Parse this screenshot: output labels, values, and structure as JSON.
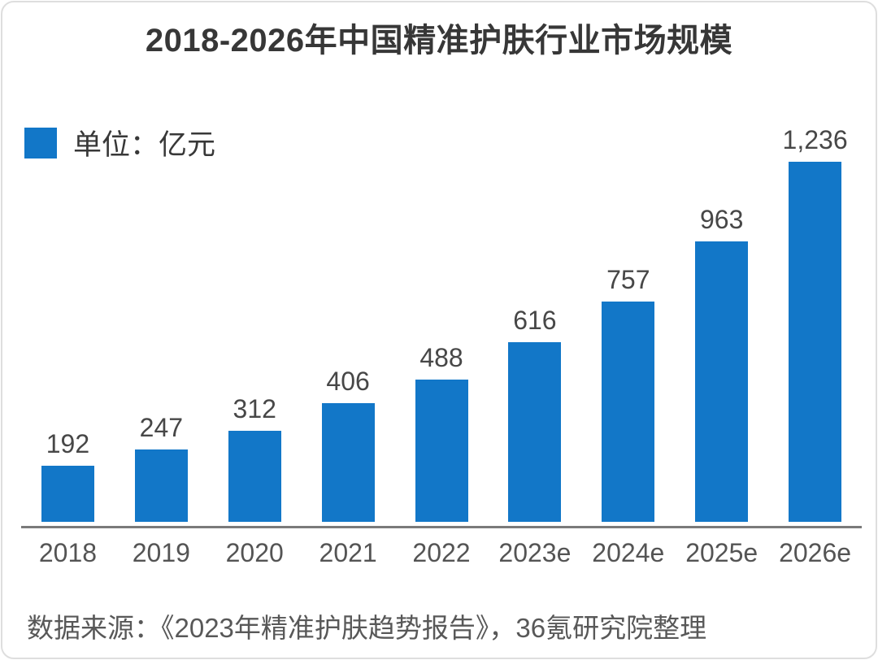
{
  "chart_data": {
    "type": "bar",
    "title": "2018-2026年中国精准护肤行业市场规模",
    "legend_label": "单位：亿元",
    "categories": [
      "2018",
      "2019",
      "2020",
      "2021",
      "2022",
      "2023e",
      "2024e",
      "2025e",
      "2026e"
    ],
    "values": [
      192,
      247,
      312,
      406,
      488,
      616,
      757,
      963,
      1236
    ],
    "value_labels": [
      "192",
      "247",
      "312",
      "406",
      "488",
      "616",
      "757",
      "963",
      "1,236"
    ],
    "source_note": "数据来源：《2023年精准护肤趋势报告》，36氪研究院整理",
    "bar_color": "#1277C8",
    "xlabel": "",
    "ylabel": "",
    "ylim": [
      0,
      1236
    ],
    "grid": false,
    "legend_position": "top-left"
  }
}
